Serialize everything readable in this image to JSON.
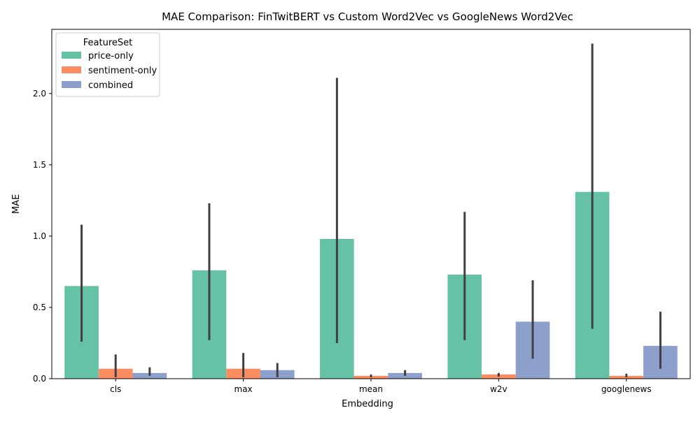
{
  "chart_data": {
    "type": "bar",
    "title": "MAE Comparison: FinTwitBERT vs Custom Word2Vec vs GoogleNews Word2Vec",
    "xlabel": "Embedding",
    "ylabel": "MAE",
    "ylim": [
      0,
      2.45
    ],
    "yticks": [
      "0.0",
      "0.5",
      "1.0",
      "1.5",
      "2.0"
    ],
    "ytick_values": [
      0,
      0.5,
      1.0,
      1.5,
      2.0
    ],
    "categories": [
      "cls",
      "max",
      "mean",
      "w2v",
      "googlenews"
    ],
    "legend": {
      "title": "FeatureSet",
      "placement": "top-left"
    },
    "series": [
      {
        "name": "price-only",
        "color": "#66c2a5",
        "values": [
          0.65,
          0.76,
          0.98,
          0.73,
          1.31
        ],
        "err_low": [
          0.26,
          0.27,
          0.25,
          0.27,
          0.35
        ],
        "err_high": [
          1.08,
          1.23,
          2.11,
          1.17,
          2.35
        ]
      },
      {
        "name": "sentiment-only",
        "color": "#fc8d62",
        "values": [
          0.07,
          0.07,
          0.02,
          0.03,
          0.02
        ],
        "err_low": [
          0.01,
          0.01,
          0.01,
          0.015,
          0.01
        ],
        "err_high": [
          0.17,
          0.18,
          0.03,
          0.04,
          0.035
        ]
      },
      {
        "name": "combined",
        "color": "#8da0cb",
        "values": [
          0.04,
          0.06,
          0.04,
          0.4,
          0.23
        ],
        "err_low": [
          0.02,
          0.01,
          0.02,
          0.14,
          0.07
        ],
        "err_high": [
          0.08,
          0.11,
          0.06,
          0.69,
          0.47
        ]
      }
    ],
    "grid": false
  }
}
